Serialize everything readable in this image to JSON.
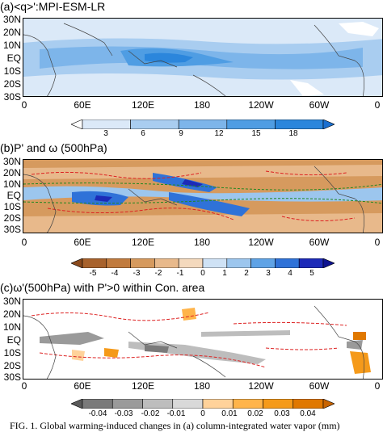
{
  "panels": [
    {
      "title": "(a)<q>':MPI-ESM-LR",
      "y_ticks": [
        "30N",
        "20N",
        "10N",
        "EQ",
        "10S",
        "20S",
        "30S"
      ],
      "x_ticks": [
        "0",
        "60E",
        "120E",
        "180",
        "120W",
        "60W",
        "0"
      ],
      "colorbar_ticks": [
        "3",
        "6",
        "9",
        "12",
        "15",
        "18"
      ],
      "colorbar_colors": [
        "#ffffff",
        "#dbe9f8",
        "#a9cdf0",
        "#7db5ea",
        "#4f9de3",
        "#2b86dc",
        "#1a6fd0"
      ]
    },
    {
      "title": "(b)P' and ω (500hPa)",
      "y_ticks": [
        "30N",
        "20N",
        "10N",
        "EQ",
        "10S",
        "20S",
        "30S"
      ],
      "x_ticks": [
        "0",
        "60E",
        "120E",
        "180",
        "120W",
        "60W",
        "0"
      ],
      "colorbar_ticks": [
        "-5",
        "-4",
        "-3",
        "-2",
        "-1",
        "0",
        "1",
        "2",
        "3",
        "4",
        "5"
      ],
      "colorbar_colors": [
        "#8b4a1c",
        "#a8622c",
        "#c17b3e",
        "#d69a5e",
        "#e8b98b",
        "#f4d9bd",
        "#cfe2f5",
        "#9cc6ee",
        "#5fa3e6",
        "#2f72d8",
        "#1c2ab8",
        "#0d1290"
      ]
    },
    {
      "title": "(c)ω'(500hPa) with P'>0 within Con. area",
      "y_ticks": [
        "30N",
        "20N",
        "10N",
        "EQ",
        "10S",
        "20S",
        "30S"
      ],
      "x_ticks": [
        "0",
        "60E",
        "120E",
        "180",
        "120W",
        "60W",
        "0"
      ],
      "colorbar_ticks": [
        "-0.04",
        "-0.03",
        "-0.02",
        "-0.01",
        "0",
        "0.01",
        "0.02",
        "0.03",
        "0.04"
      ],
      "colorbar_colors": [
        "#5a5a5a",
        "#7a7a7a",
        "#9a9a9a",
        "#bdbdbd",
        "#d9d9d9",
        "#ffd29a",
        "#ffb44a",
        "#f59a1a",
        "#e07800",
        "#c86400"
      ]
    }
  ],
  "caption": "FIG. 1. Global warming-induced changes in (a) column-integrated water vapor (mm)"
}
